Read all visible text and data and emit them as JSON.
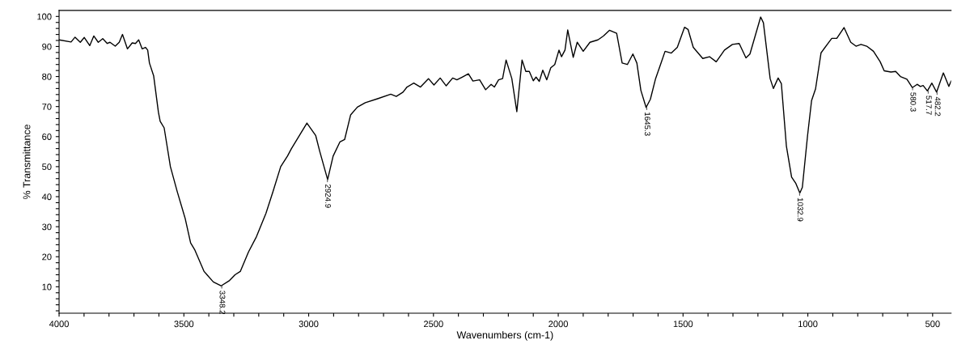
{
  "chart_data": {
    "type": "line",
    "xlabel": "Wavenumbers (cm-1)",
    "ylabel": "% Transmittance",
    "xlim": [
      4000,
      426
    ],
    "ylim": [
      1.2,
      102
    ],
    "xticks": [
      4000,
      {
        "value": 3900,
        "label": null
      },
      {
        "value": 3800,
        "label": null
      },
      {
        "value": 3700,
        "label": null
      },
      {
        "value": 3600,
        "label": null
      },
      3500,
      {
        "value": 3400,
        "label": null
      },
      {
        "value": 3300,
        "label": null
      },
      {
        "value": 3200,
        "label": null
      },
      {
        "value": 3100,
        "label": null
      },
      3000,
      {
        "value": 2900,
        "label": null
      },
      {
        "value": 2800,
        "label": null
      },
      {
        "value": 2700,
        "label": null
      },
      {
        "value": 2600,
        "label": null
      },
      2500,
      {
        "value": 2400,
        "label": null
      },
      {
        "value": 2300,
        "label": null
      },
      {
        "value": 2200,
        "label": null
      },
      {
        "value": 2100,
        "label": null
      },
      2000,
      {
        "value": 1900,
        "label": null
      },
      {
        "value": 1800,
        "label": null
      },
      {
        "value": 1700,
        "label": null
      },
      {
        "value": 1600,
        "label": null
      },
      1500,
      {
        "value": 1400,
        "label": null
      },
      {
        "value": 1300,
        "label": null
      },
      {
        "value": 1200,
        "label": null
      },
      {
        "value": 1100,
        "label": null
      },
      1000,
      {
        "value": 900,
        "label": null
      },
      {
        "value": 800,
        "label": null
      },
      {
        "value": 700,
        "label": null
      },
      {
        "value": 600,
        "label": null
      },
      500
    ],
    "yticks": [
      {
        "value": 2,
        "label": null
      },
      {
        "value": 4,
        "label": null
      },
      {
        "value": 6,
        "label": null
      },
      {
        "value": 8,
        "label": null
      },
      10,
      {
        "value": 12,
        "label": null
      },
      {
        "value": 14,
        "label": null
      },
      {
        "value": 16,
        "label": null
      },
      {
        "value": 18,
        "label": null
      },
      20,
      {
        "value": 22,
        "label": null
      },
      {
        "value": 24,
        "label": null
      },
      {
        "value": 26,
        "label": null
      },
      {
        "value": 28,
        "label": null
      },
      30,
      {
        "value": 32,
        "label": null
      },
      {
        "value": 34,
        "label": null
      },
      {
        "value": 36,
        "label": null
      },
      {
        "value": 38,
        "label": null
      },
      40,
      {
        "value": 42,
        "label": null
      },
      {
        "value": 44,
        "label": null
      },
      {
        "value": 46,
        "label": null
      },
      {
        "value": 48,
        "label": null
      },
      50,
      {
        "value": 52,
        "label": null
      },
      {
        "value": 54,
        "label": null
      },
      {
        "value": 56,
        "label": null
      },
      {
        "value": 58,
        "label": null
      },
      60,
      {
        "value": 62,
        "label": null
      },
      {
        "value": 64,
        "label": null
      },
      {
        "value": 66,
        "label": null
      },
      {
        "value": 68,
        "label": null
      },
      70,
      {
        "value": 72,
        "label": null
      },
      {
        "value": 74,
        "label": null
      },
      {
        "value": 76,
        "label": null
      },
      {
        "value": 78,
        "label": null
      },
      80,
      {
        "value": 82,
        "label": null
      },
      {
        "value": 84,
        "label": null
      },
      {
        "value": 86,
        "label": null
      },
      {
        "value": 88,
        "label": null
      },
      90,
      {
        "value": 92,
        "label": null
      },
      {
        "value": 94,
        "label": null
      },
      {
        "value": 96,
        "label": null
      },
      {
        "value": 98,
        "label": null
      },
      100
    ],
    "grid": false,
    "legend": false,
    "marker": "none",
    "line_style": "solid",
    "series": [
      {
        "color": "#000000",
        "x": [
          4000,
          3952,
          3936,
          3915,
          3899,
          3877,
          3861,
          3843,
          3825,
          3807,
          3796,
          3775,
          3759,
          3746,
          3726,
          3707,
          3694,
          3681,
          3667,
          3654,
          3645,
          3638,
          3621,
          3602,
          3595,
          3579,
          3554,
          3527,
          3495,
          3473,
          3457,
          3419,
          3382,
          3351,
          3317,
          3295,
          3274,
          3241,
          3209,
          3171,
          3144,
          3112,
          3085,
          3069,
          3037,
          3007,
          2972,
          2956,
          2924,
          2902,
          2875,
          2856,
          2832,
          2805,
          2773,
          2724,
          2671,
          2649,
          2622,
          2606,
          2579,
          2552,
          2520,
          2498,
          2473,
          2449,
          2423,
          2406,
          2385,
          2360,
          2342,
          2315,
          2291,
          2269,
          2256,
          2239,
          2223,
          2209,
          2186,
          2166,
          2145,
          2130,
          2116,
          2100,
          2089,
          2076,
          2062,
          2046,
          2030,
          2014,
          1997,
          1987,
          1973,
          1962,
          1940,
          1924,
          1900,
          1873,
          1841,
          1819,
          1795,
          1766,
          1744,
          1723,
          1701,
          1685,
          1669,
          1648,
          1631,
          1610,
          1588,
          1572,
          1547,
          1523,
          1494,
          1480,
          1459,
          1421,
          1394,
          1367,
          1334,
          1302,
          1275,
          1248,
          1232,
          1189,
          1178,
          1151,
          1138,
          1119,
          1106,
          1086,
          1065,
          1048,
          1032,
          1022,
          1001,
          985,
          969,
          947,
          915,
          904,
          884,
          855,
          828,
          807,
          787,
          764,
          737,
          710,
          694,
          667,
          648,
          629,
          603,
          581,
          562,
          549,
          538,
          521,
          503,
          484,
          457,
          435,
          426
        ],
        "values": [
          92.2,
          91.5,
          93.1,
          91.4,
          93,
          90.3,
          93.5,
          91.4,
          92.6,
          91,
          91.4,
          90.1,
          91.4,
          94,
          89.2,
          91.2,
          91,
          92.2,
          89.2,
          89.7,
          88.8,
          84.5,
          80.2,
          68.1,
          65.1,
          62.9,
          50,
          41.8,
          32.8,
          24.6,
          22.4,
          15.1,
          11.6,
          10.3,
          12.1,
          14,
          15.1,
          21.6,
          26.7,
          34.5,
          41.4,
          50,
          53.5,
          56,
          60.4,
          64.5,
          60.4,
          55.2,
          45.7,
          53.5,
          58.2,
          59,
          67.2,
          69.8,
          71.3,
          72.6,
          74.1,
          73.4,
          74.8,
          76.5,
          77.8,
          76.5,
          79.3,
          77.2,
          79.5,
          76.9,
          79.5,
          78.9,
          79.8,
          80.9,
          78.5,
          78.9,
          75.6,
          77.4,
          76.5,
          78.9,
          79.3,
          85.5,
          79.3,
          68.3,
          85.5,
          81.7,
          81.7,
          78.6,
          79.8,
          78.4,
          82.1,
          78.9,
          82.9,
          84,
          88.8,
          86.6,
          88.8,
          95.5,
          86.4,
          91.4,
          88.4,
          91.4,
          92.2,
          93.5,
          95.4,
          94.4,
          84.5,
          84,
          87.5,
          84.5,
          75.4,
          69.7,
          72.4,
          79.3,
          84.5,
          88.4,
          87.8,
          89.7,
          96.4,
          95.7,
          89.7,
          86,
          86.6,
          84.9,
          88.8,
          90.7,
          91,
          86.2,
          87.5,
          99.8,
          97.9,
          79.3,
          76,
          79.5,
          77.6,
          56.9,
          46.5,
          44.4,
          41.2,
          43.1,
          60.4,
          72,
          75.9,
          87.9,
          91.5,
          92.7,
          92.7,
          96.3,
          91.4,
          90.1,
          90.7,
          90.1,
          88.4,
          84.9,
          81.9,
          81.5,
          81.7,
          80,
          79.1,
          76.3,
          77.4,
          76.7,
          77,
          75.2,
          77.8,
          74.8,
          81.2,
          76.7,
          78.5
        ]
      }
    ],
    "annotations": [
      {
        "text": "3348.2",
        "x": 3348.2,
        "y": 10.3
      },
      {
        "text": "2924.9",
        "x": 2924.9,
        "y": 45.7
      },
      {
        "text": "1645.3",
        "x": 1645.3,
        "y": 69.7
      },
      {
        "text": "1032.9",
        "x": 1032.9,
        "y": 41.2
      },
      {
        "text": "580.3",
        "x": 580.3,
        "y": 76.3
      },
      {
        "text": "517.7",
        "x": 517.7,
        "y": 75.2
      },
      {
        "text": "482.2",
        "x": 482.2,
        "y": 74.8
      }
    ]
  }
}
